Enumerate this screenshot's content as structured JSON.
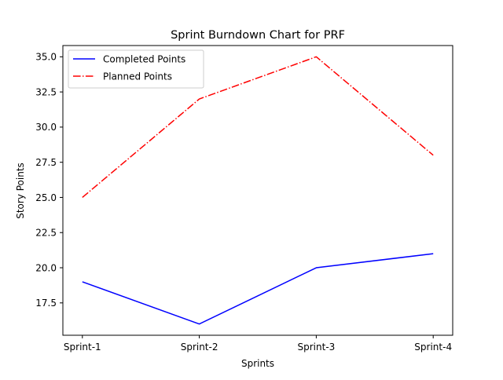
{
  "chart_data": {
    "type": "line",
    "title": "Sprint Burndown Chart for PRF",
    "xlabel": "Sprints",
    "ylabel": "Story Points",
    "categories": [
      "Sprint-1",
      "Sprint-2",
      "Sprint-3",
      "Sprint-4"
    ],
    "ylim": [
      15.2,
      35.8
    ],
    "yticks": [
      "17.5",
      "20.0",
      "22.5",
      "25.0",
      "27.5",
      "30.0",
      "32.5",
      "35.0"
    ],
    "grid": false,
    "legend_position": "top-left",
    "series": [
      {
        "name": "Completed Points",
        "values": [
          19,
          16,
          20,
          21
        ],
        "color": "#0000ff",
        "line_style": "solid"
      },
      {
        "name": "Planned Points",
        "values": [
          25,
          32,
          35,
          28
        ],
        "color": "#ff0000",
        "line_style": "dash-dot"
      }
    ]
  }
}
